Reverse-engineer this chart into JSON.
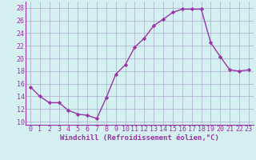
{
  "x": [
    0,
    1,
    2,
    3,
    4,
    5,
    6,
    7,
    8,
    9,
    10,
    11,
    12,
    13,
    14,
    15,
    16,
    17,
    18,
    19,
    20,
    21,
    22,
    23
  ],
  "y": [
    15.5,
    14.0,
    13.0,
    13.0,
    11.8,
    11.2,
    11.0,
    10.5,
    13.8,
    17.5,
    19.0,
    21.8,
    23.2,
    25.2,
    26.2,
    27.3,
    27.8,
    27.8,
    27.8,
    22.5,
    20.3,
    18.2,
    18.0,
    18.2
  ],
  "line_color": "#9933aa",
  "marker": "D",
  "marker_size": 2.2,
  "line_width": 1.0,
  "xlabel": "Windchill (Refroidissement éolien,°C)",
  "xlim": [
    -0.5,
    23.5
  ],
  "ylim": [
    9.5,
    29.0
  ],
  "yticks": [
    10,
    12,
    14,
    16,
    18,
    20,
    22,
    24,
    26,
    28
  ],
  "xticks": [
    0,
    1,
    2,
    3,
    4,
    5,
    6,
    7,
    8,
    9,
    10,
    11,
    12,
    13,
    14,
    15,
    16,
    17,
    18,
    19,
    20,
    21,
    22,
    23
  ],
  "grid_color": "#aaaacc",
  "bg_color": "#d5f0f0",
  "fig_bg": "#d5f0f0",
  "xlabel_fontsize": 6.5,
  "tick_fontsize": 6.0
}
